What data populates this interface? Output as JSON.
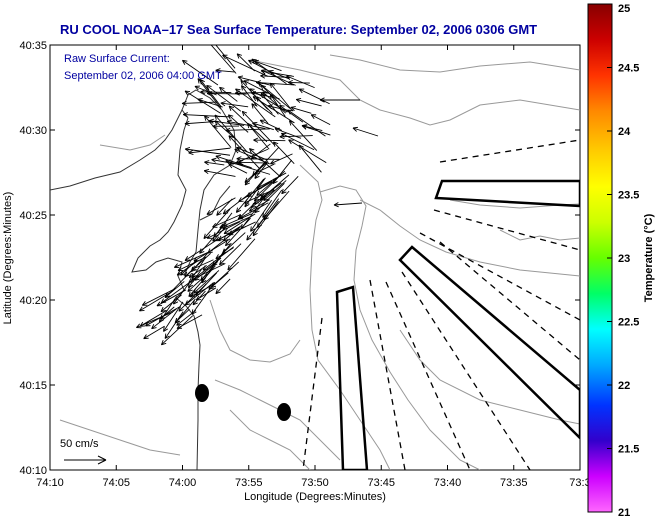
{
  "title": "RU COOL  NOAA–17  Sea Surface Temperature:  September 02, 2006 0306 GMT",
  "current_label_1": "Raw Surface Current:",
  "current_label_2": "September 02, 2006 04:00 GMT",
  "scale_label": "50 cm/s",
  "x_axis_label": "Longitude (Degrees:Minutes)",
  "y_axis_label": "Latitude (Degrees:Minutes)",
  "colorbar_label": "Temperature (°C)",
  "x_ticks": [
    "74:10",
    "74:05",
    "74:00",
    "73:55",
    "73:50",
    "73:45",
    "73:40",
    "73:35",
    "73:3"
  ],
  "y_ticks": [
    "40:35",
    "40:30",
    "40:25",
    "40:20",
    "40:15",
    "40:10"
  ],
  "colorbar_ticks": [
    "25",
    "24.5",
    "24",
    "23.5",
    "23",
    "22.5",
    "22",
    "21.5",
    "21"
  ],
  "colorbar_colors": [
    "#ff66ff",
    "#cc00ff",
    "#3300cc",
    "#0033ff",
    "#00aaff",
    "#00ffff",
    "#00ff66",
    "#66ff00",
    "#ccff00",
    "#ffff00",
    "#ffcc00",
    "#ff8800",
    "#ff3300",
    "#cc0000",
    "#880000"
  ]
}
